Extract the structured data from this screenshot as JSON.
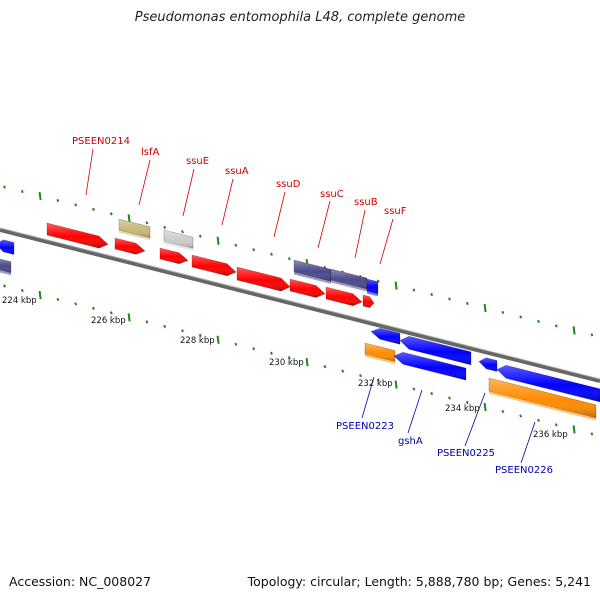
{
  "title": "Pseudomonas entomophila L48, complete genome",
  "footer": {
    "accession": "Accession: NC_008027",
    "topology": "Topology: circular; Length: 5,888,780 bp; Genes: 5,241"
  },
  "colors": {
    "forward_cds": "#ff0000",
    "reverse_cds": "#0000ff",
    "reverse_rna": "#ff8c00",
    "olive": "#c8b878",
    "grey": "#cccccc",
    "slate": "#4a4a8c",
    "tick": "#1a8a1a",
    "backbone": "#888888",
    "label_forward": "#cc0000",
    "label_reverse": "#0000aa"
  },
  "scale_labels": [
    "224 kbp",
    "226 kbp",
    "228 kbp",
    "230 kbp",
    "232 kbp",
    "234 kbp",
    "236 kbp"
  ],
  "forward_labels": [
    "PSEEN0214",
    "lsfA",
    "ssuE",
    "ssuA",
    "ssuD",
    "ssuC",
    "ssuB",
    "ssuF"
  ],
  "reverse_labels": [
    "PSEEN0223",
    "gshA",
    "PSEEN0225",
    "PSEEN0226"
  ]
}
